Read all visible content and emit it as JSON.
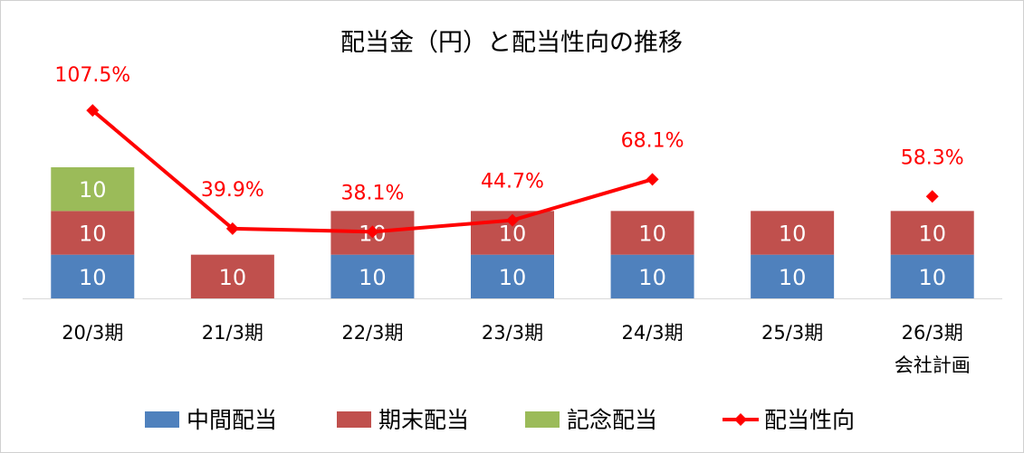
{
  "chart_data": {
    "type": "bar+line",
    "title": "配当金（円）と配当性向の推移",
    "categories": [
      "20/3期",
      "21/3期",
      "22/3期",
      "23/3期",
      "24/3期",
      "25/3期",
      "26/3期\n会社計画"
    ],
    "series": [
      {
        "name": "中間配当",
        "type": "stacked-bar",
        "color": "#4F81BD",
        "values": [
          10,
          0,
          10,
          10,
          10,
          10,
          10
        ]
      },
      {
        "name": "期末配当",
        "type": "stacked-bar",
        "color": "#C0504D",
        "values": [
          10,
          10,
          10,
          10,
          10,
          10,
          10
        ]
      },
      {
        "name": "記念配当",
        "type": "stacked-bar",
        "color": "#9BBB59",
        "values": [
          10,
          0,
          0,
          0,
          0,
          0,
          0
        ]
      },
      {
        "name": "配当性向",
        "type": "line",
        "color": "#FF0000",
        "marker": "diamond",
        "unit": "%",
        "values": [
          107.5,
          39.9,
          38.1,
          44.7,
          68.1,
          null,
          58.3
        ],
        "labels": [
          "107.5%",
          "39.9%",
          "38.1%",
          "44.7%",
          "68.1%",
          "",
          "58.3%"
        ]
      }
    ],
    "ylim": [
      0,
      60
    ],
    "y2lim": [
      0,
      150
    ],
    "grid": false,
    "legend": "bottom"
  }
}
